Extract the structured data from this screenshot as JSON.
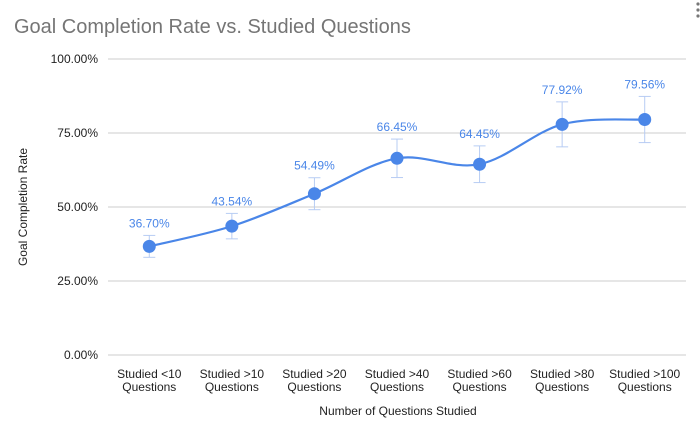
{
  "chart_data": {
    "type": "line",
    "title": "Goal Completion Rate vs. Studied Questions",
    "xlabel": "Number of Questions Studied",
    "ylabel": "Goal Completion Rate",
    "categories": [
      [
        "Studied <10",
        "Questions"
      ],
      [
        "Studied >10",
        "Questions"
      ],
      [
        "Studied >20",
        "Questions"
      ],
      [
        "Studied >40",
        "Questions"
      ],
      [
        "Studied >60",
        "Questions"
      ],
      [
        "Studied >80",
        "Questions"
      ],
      [
        "Studied >100",
        "Questions"
      ]
    ],
    "values": [
      36.7,
      43.54,
      54.49,
      66.45,
      64.45,
      77.92,
      79.56
    ],
    "data_labels": [
      "36.70%",
      "43.54%",
      "54.49%",
      "66.45%",
      "64.45%",
      "77.92%",
      "79.56%"
    ],
    "error_bars": [
      3.7,
      4.3,
      5.4,
      6.5,
      6.2,
      7.6,
      7.8
    ],
    "yticks": [
      "0.00%",
      "25.00%",
      "50.00%",
      "75.00%",
      "100.00%"
    ],
    "ylim": [
      0,
      100
    ],
    "grid": true,
    "smooth": true,
    "legend": "none",
    "colors": {
      "series": "#4a86e8",
      "error_bar": "#b7ccf3",
      "grid": "#cccccc",
      "title": "#757575"
    }
  },
  "menu_icon": "more-vert-icon"
}
